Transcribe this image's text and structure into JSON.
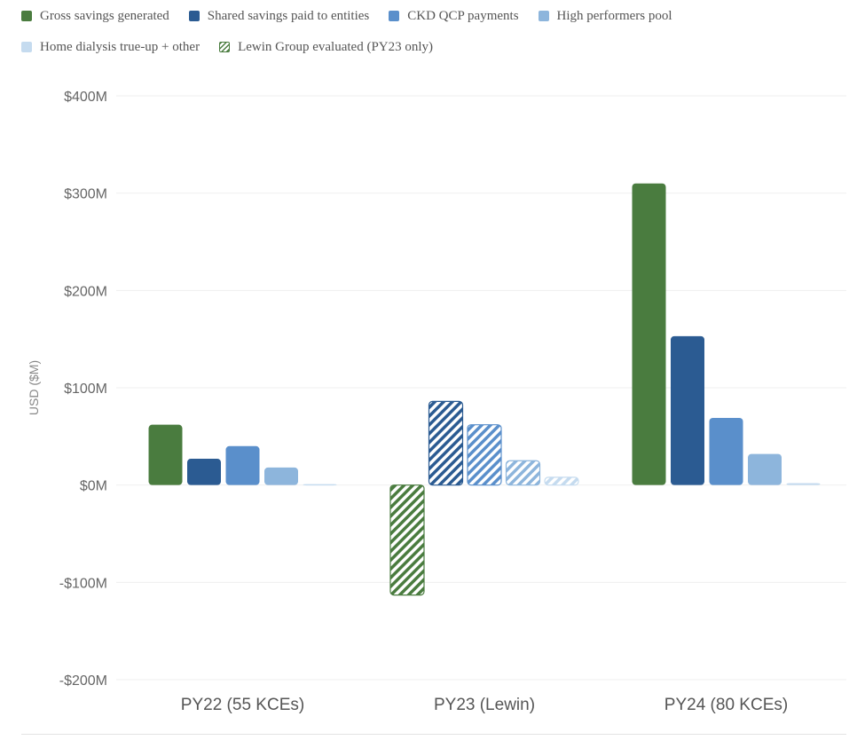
{
  "chart_data": {
    "type": "bar",
    "categories": [
      "PY22 (55 KCEs)",
      "PY23 (Lewin)",
      "PY24 (80 KCEs)"
    ],
    "series": [
      {
        "name": "Gross savings generated",
        "color": "#4a7c3f",
        "values": [
          62,
          -113,
          310
        ]
      },
      {
        "name": "Shared savings paid to entities",
        "color": "#2b5b92",
        "values": [
          27,
          86,
          153
        ]
      },
      {
        "name": "CKD QCP payments",
        "color": "#5a8fcb",
        "values": [
          40,
          62,
          69
        ]
      },
      {
        "name": "High performers pool",
        "color": "#8db5dc",
        "values": [
          18,
          25,
          32
        ]
      },
      {
        "name": "Home dialysis true-up + other",
        "color": "#c5dbef",
        "values": [
          1,
          8,
          2
        ]
      }
    ],
    "hatched_legend_label": "Lewin Group evaluated (PY23 only)",
    "hatched_category": "PY23 (Lewin)",
    "ylabel": "USD ($M)",
    "ylim": [
      -200,
      400
    ],
    "yticks": [
      400,
      300,
      200,
      100,
      0,
      -100,
      -200
    ],
    "ytick_labels": [
      "$400M",
      "$300M",
      "$200M",
      "$100M",
      "$0M",
      "-$100M",
      "-$200M"
    ],
    "legend_position": "top-left",
    "grid": true
  }
}
